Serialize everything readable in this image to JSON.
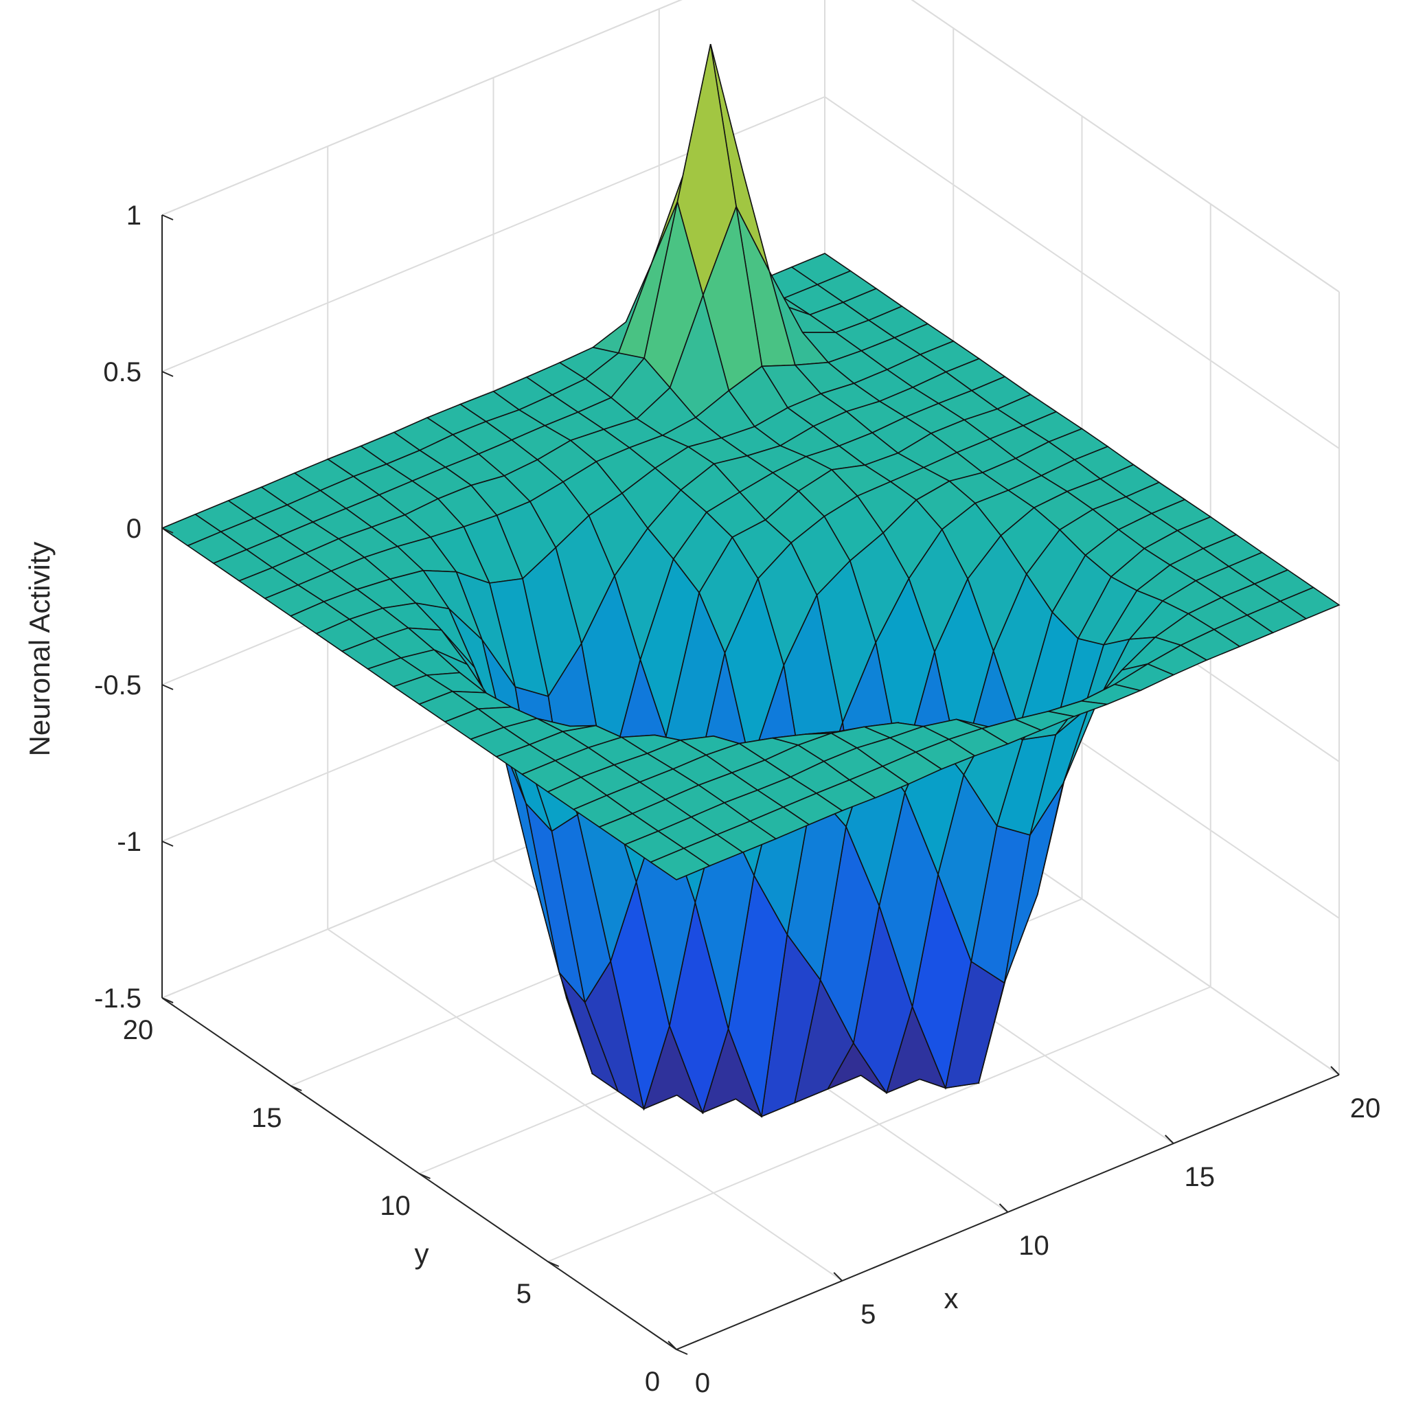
{
  "chart_data": {
    "type": "surface",
    "title": "",
    "xlabel": "x",
    "ylabel": "y",
    "zlabel": "Neuronal Activity",
    "xlim": [
      0,
      20
    ],
    "ylim": [
      0,
      20
    ],
    "zlim": [
      -1.5,
      1
    ],
    "x_ticks": [
      "0",
      "5",
      "10",
      "15",
      "20"
    ],
    "y_ticks": [
      "0",
      "5",
      "10",
      "15",
      "20"
    ],
    "z_ticks": [
      "-1.5",
      "-1",
      "-0.5",
      "0",
      "0.5",
      "1"
    ],
    "grid": true,
    "colormap": "parula",
    "grid_size": [
      21,
      21
    ],
    "baseline": 0,
    "features": [
      {
        "kind": "peak",
        "x": 15,
        "y": 18,
        "z": 1.0
      },
      {
        "kind": "trough",
        "x": 8,
        "y": 8,
        "z": -1.45
      },
      {
        "kind": "trough",
        "x": 11,
        "y": 7,
        "z": -1.2
      },
      {
        "kind": "trough",
        "x": 13,
        "y": 5,
        "z": -1.25
      },
      {
        "kind": "trough",
        "x": 7,
        "y": 12,
        "z": -1.0
      },
      {
        "kind": "trough",
        "x": 6,
        "y": 10,
        "z": -1.05
      }
    ]
  }
}
